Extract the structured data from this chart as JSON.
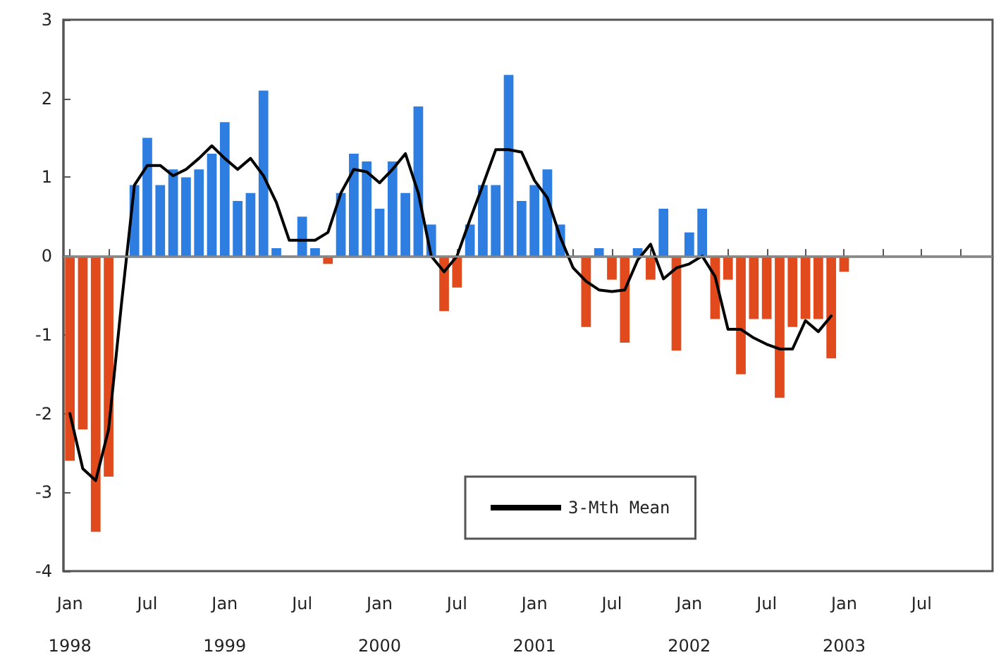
{
  "chart_data": {
    "type": "bar",
    "categories": [
      "Jan\n1998",
      null,
      null,
      null,
      null,
      null,
      "Jul",
      null,
      null,
      null,
      null,
      null,
      "Jan\n1999",
      null,
      null,
      null,
      null,
      null,
      "Jul",
      null,
      null,
      null,
      null,
      null,
      "Jan\n2000",
      null,
      null,
      null,
      null,
      null,
      "Jul",
      null,
      null,
      null,
      null,
      null,
      "Jan\n2001",
      null,
      null,
      null,
      null,
      null,
      "Jul",
      null,
      null,
      null,
      null,
      null,
      "Jan\n2002",
      null,
      null,
      null,
      null,
      null,
      "Jul",
      null,
      null,
      null,
      null,
      null,
      "Jan\n2003",
      null,
      null,
      null,
      null,
      null,
      "Jul",
      null,
      null,
      null,
      null,
      null
    ],
    "series": [
      {
        "colors": [
          "#e04a1c",
          "#e04a1c",
          "#e04a1c",
          "#e04a1c",
          null,
          "#2e7de0",
          "#2e7de0",
          "#2e7de0",
          "#2e7de0",
          "#2e7de0",
          "#2e7de0",
          "#2e7de0",
          "#2e7de0",
          "#2e7de0",
          "#2e7de0",
          "#2e7de0",
          "#2e7de0",
          null,
          "#2e7de0",
          "#2e7de0",
          "#e04a1c",
          "#2e7de0",
          "#2e7de0",
          "#2e7de0",
          "#2e7de0",
          "#2e7de0",
          "#2e7de0",
          "#2e7de0",
          "#2e7de0",
          "#e04a1c",
          "#e04a1c",
          "#2e7de0",
          "#2e7de0",
          "#2e7de0",
          "#2e7de0",
          "#2e7de0",
          "#2e7de0",
          "#2e7de0",
          "#2e7de0",
          null,
          "#e04a1c",
          "#2e7de0",
          "#e04a1c",
          "#e04a1c",
          "#2e7de0",
          "#e04a1c",
          "#2e7de0",
          "#e04a1c",
          "#2e7de0",
          "#2e7de0",
          "#e04a1c",
          "#e04a1c",
          "#e04a1c",
          "#e04a1c",
          "#e04a1c",
          "#e04a1c",
          "#e04a1c",
          "#e04a1c",
          "#e04a1c",
          "#e04a1c",
          "#e04a1c",
          null,
          null,
          null,
          null,
          null,
          null,
          null,
          null,
          null,
          null,
          null
        ],
        "values": [
          -2.6,
          -2.2,
          -3.5,
          -2.8,
          null,
          0.9,
          1.5,
          0.9,
          1.1,
          1.0,
          1.1,
          1.3,
          1.7,
          0.7,
          0.8,
          2.1,
          0.1,
          null,
          0.5,
          0.1,
          -0.1,
          0.8,
          1.3,
          1.2,
          0.6,
          1.2,
          0.8,
          1.9,
          0.4,
          -0.7,
          -0.4,
          0.4,
          0.9,
          0.9,
          2.3,
          0.7,
          0.9,
          1.1,
          0.4,
          null,
          -0.9,
          0.1,
          -0.3,
          -1.1,
          0.1,
          -0.3,
          0.6,
          -1.2,
          0.3,
          0.6,
          -0.8,
          -0.3,
          -1.5,
          -0.8,
          -0.8,
          -1.8,
          -0.9,
          -0.8,
          -0.8,
          -1.3,
          -0.2,
          null,
          null,
          null,
          null,
          null,
          null,
          null,
          null,
          null,
          null,
          null
        ]
      },
      {
        "type": "line",
        "name": "3-Mth Mean",
        "color": "#000000",
        "values": [
          -2.0,
          -2.7,
          -2.85,
          -2.2,
          -0.6,
          0.9,
          1.15,
          1.15,
          1.02,
          1.1,
          1.24,
          1.4,
          1.24,
          1.1,
          1.24,
          1.02,
          0.68,
          0.2,
          0.2,
          0.2,
          0.3,
          0.8,
          1.1,
          1.07,
          0.93,
          1.1,
          1.3,
          0.8,
          0,
          -0.2,
          0,
          0.46,
          0.9,
          1.35,
          1.35,
          1.32,
          0.96,
          0.74,
          0.24,
          -0.15,
          -0.32,
          -0.43,
          -0.45,
          -0.43,
          -0.05,
          0.15,
          -0.29,
          -0.15,
          -0.1,
          0,
          -0.26,
          -0.93,
          -0.93,
          -1.04,
          -1.12,
          -1.18,
          -1.18,
          -0.82,
          -0.96,
          -0.76,
          null,
          null,
          null,
          null,
          null,
          null,
          null,
          null,
          null,
          null,
          null,
          null
        ]
      }
    ],
    "ylim": [
      -4,
      3
    ],
    "yticks": [
      -4,
      -3,
      -2,
      -1,
      0,
      1,
      2,
      3
    ],
    "ref_lines": [
      {
        "axis": "y",
        "value": 0,
        "color": "#888888"
      }
    ],
    "grid": false,
    "legend": "bottom",
    "marker": "none",
    "line_style": "solid"
  }
}
